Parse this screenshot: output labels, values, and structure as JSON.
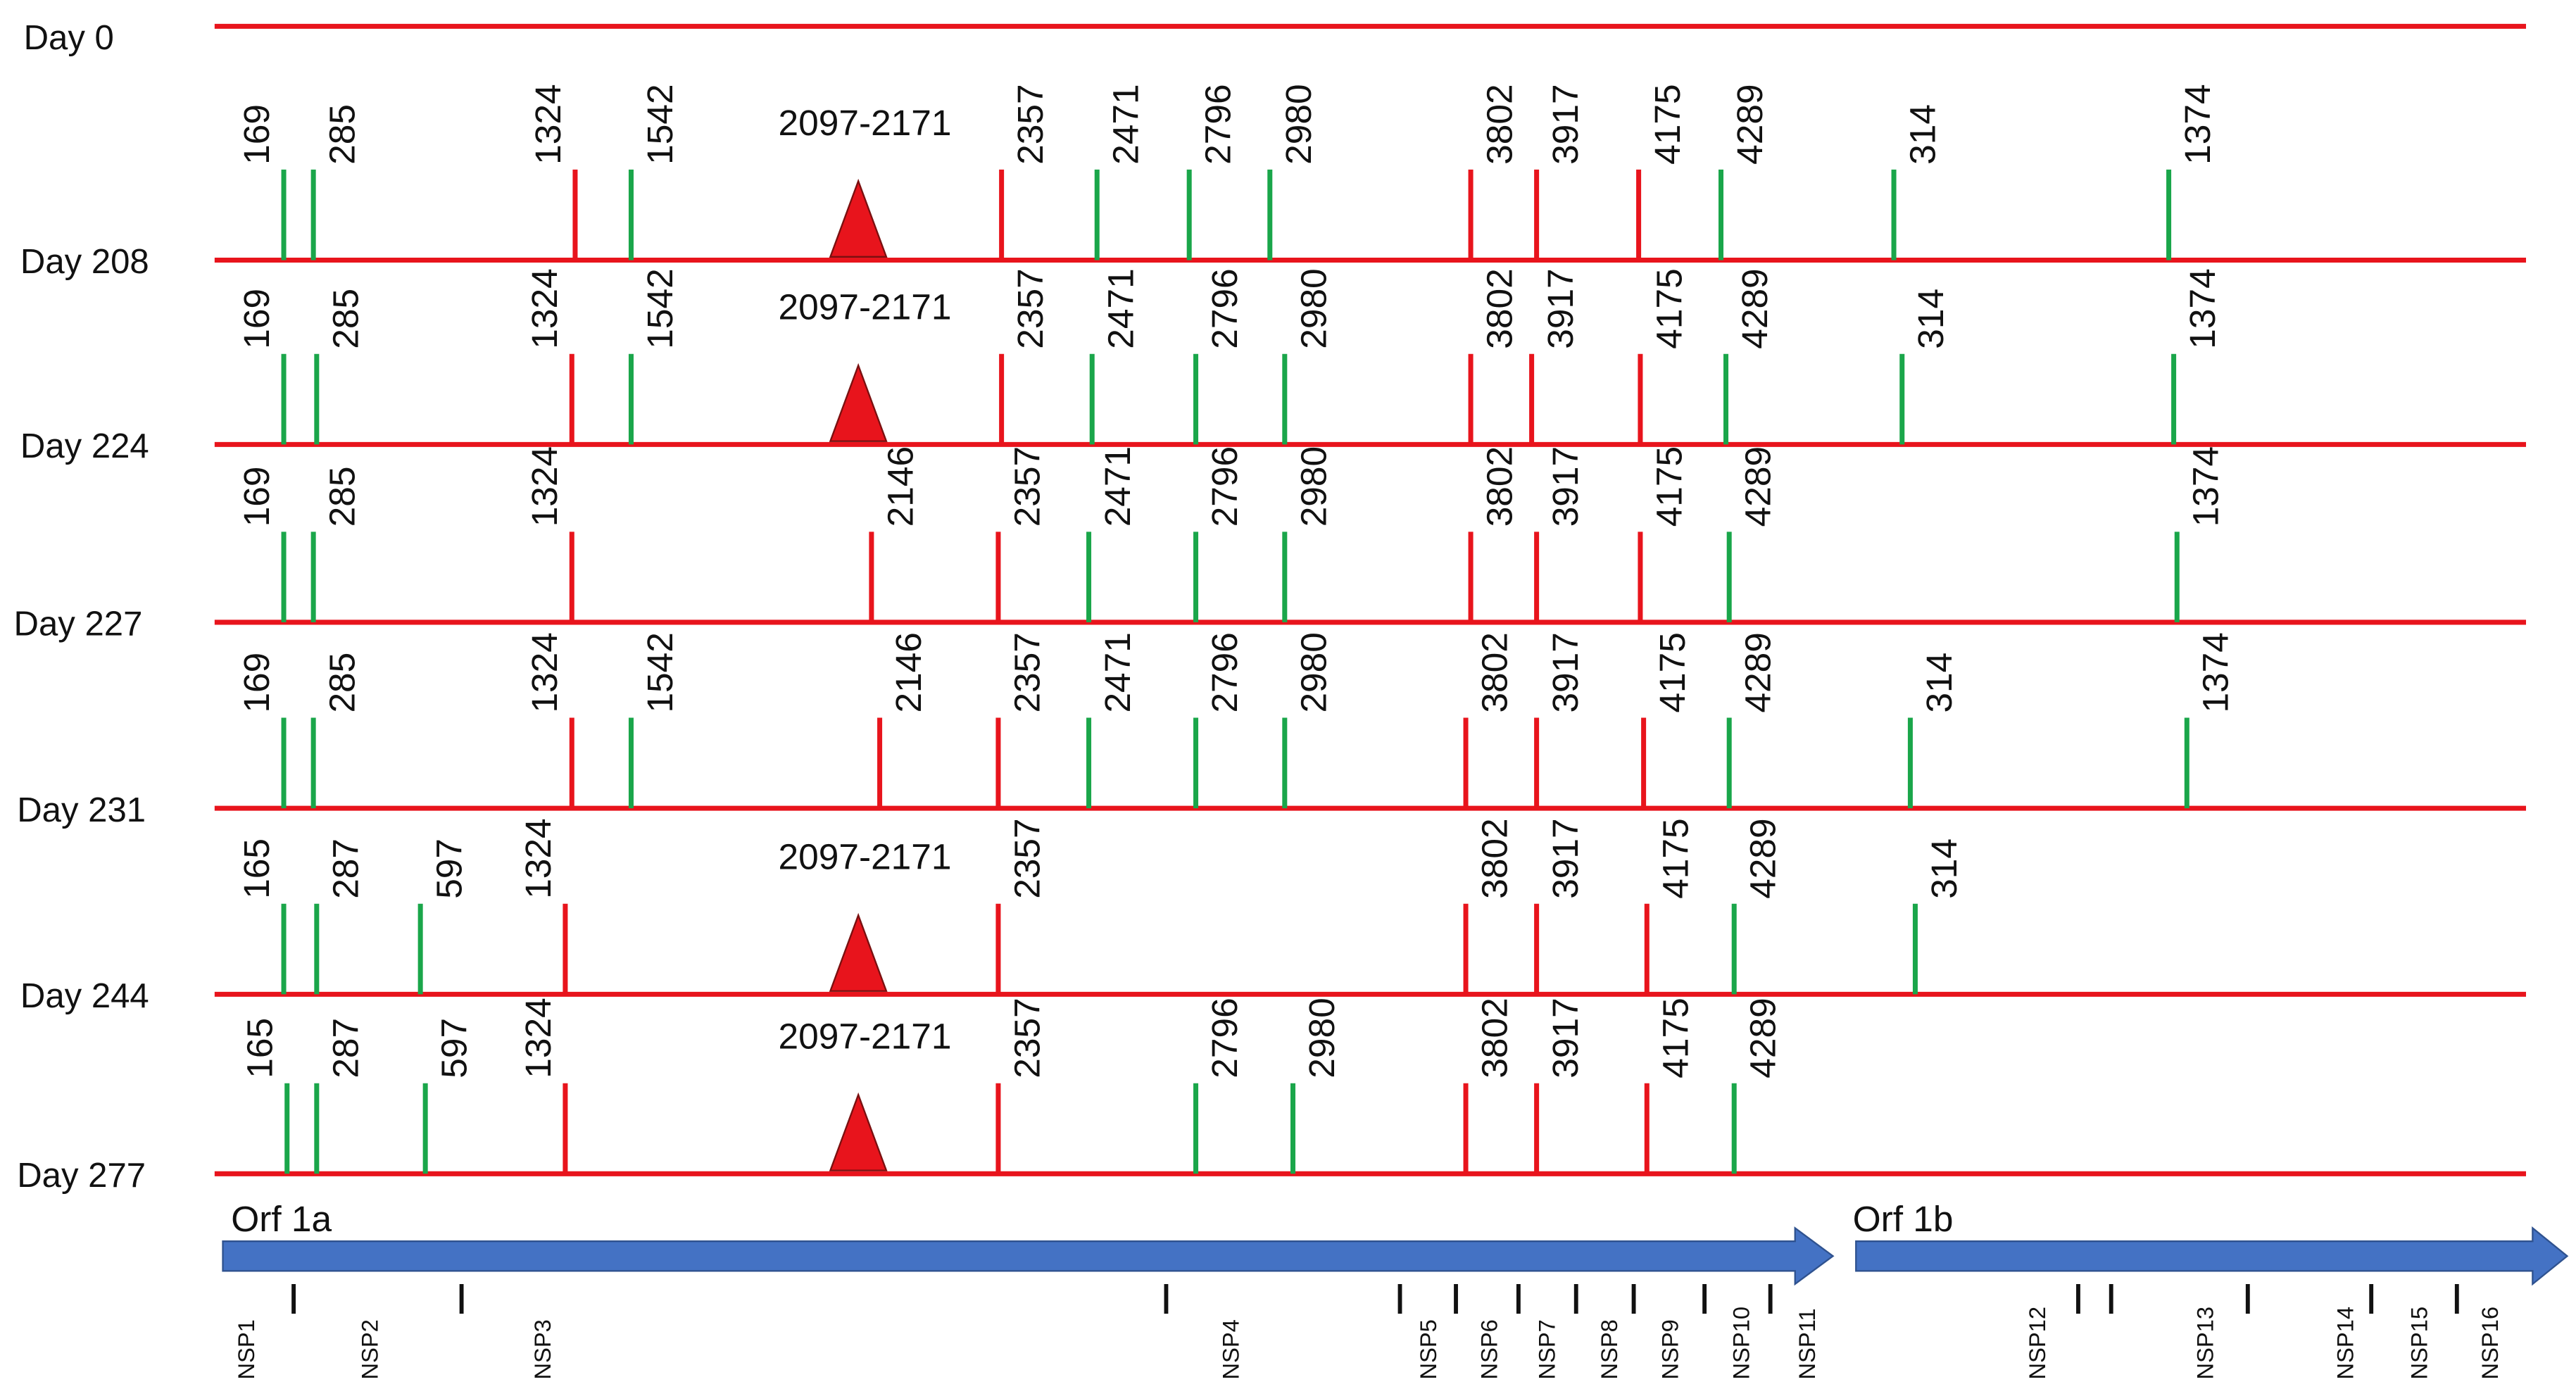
{
  "rows": [
    {
      "label": "Day 0",
      "mutations": []
    },
    {
      "label": "Day 208",
      "mutations": [
        {
          "label": "169",
          "color": "#1aa64a"
        },
        {
          "label": "285",
          "color": "#1aa64a"
        },
        {
          "label": "1324",
          "color": "#e8141c"
        },
        {
          "label": "1542",
          "color": "#1aa64a"
        },
        {
          "label": "2097-2171",
          "color": "#e8141c",
          "shape": "triangle"
        },
        {
          "label": "2357",
          "color": "#e8141c"
        },
        {
          "label": "2471",
          "color": "#1aa64a"
        },
        {
          "label": "2796",
          "color": "#1aa64a"
        },
        {
          "label": "2980",
          "color": "#1aa64a"
        },
        {
          "label": "3802",
          "color": "#e8141c"
        },
        {
          "label": "3917",
          "color": "#e8141c"
        },
        {
          "label": "4175",
          "color": "#e8141c"
        },
        {
          "label": "4289",
          "color": "#1aa64a"
        },
        {
          "label": "314",
          "color": "#1aa64a"
        },
        {
          "label": "1374",
          "color": "#1aa64a"
        }
      ]
    },
    {
      "label": "Day 224",
      "mutations": [
        {
          "label": "169",
          "color": "#1aa64a"
        },
        {
          "label": "285",
          "color": "#1aa64a"
        },
        {
          "label": "1324",
          "color": "#e8141c"
        },
        {
          "label": "1542",
          "color": "#1aa64a"
        },
        {
          "label": "2097-2171",
          "color": "#e8141c",
          "shape": "triangle"
        },
        {
          "label": "2357",
          "color": "#e8141c"
        },
        {
          "label": "2471",
          "color": "#1aa64a"
        },
        {
          "label": "2796",
          "color": "#1aa64a"
        },
        {
          "label": "2980",
          "color": "#1aa64a"
        },
        {
          "label": "3802",
          "color": "#e8141c"
        },
        {
          "label": "3917",
          "color": "#e8141c"
        },
        {
          "label": "4175",
          "color": "#e8141c"
        },
        {
          "label": "4289",
          "color": "#1aa64a"
        },
        {
          "label": "314",
          "color": "#1aa64a"
        },
        {
          "label": "1374",
          "color": "#1aa64a"
        }
      ]
    },
    {
      "label": "Day 227",
      "mutations": [
        {
          "label": "169",
          "color": "#1aa64a"
        },
        {
          "label": "285",
          "color": "#1aa64a"
        },
        {
          "label": "1324",
          "color": "#e8141c"
        },
        {
          "label": "2146",
          "color": "#e8141c"
        },
        {
          "label": "2357",
          "color": "#e8141c"
        },
        {
          "label": "2471",
          "color": "#1aa64a"
        },
        {
          "label": "2796",
          "color": "#1aa64a"
        },
        {
          "label": "2980",
          "color": "#1aa64a"
        },
        {
          "label": "3802",
          "color": "#e8141c"
        },
        {
          "label": "3917",
          "color": "#e8141c"
        },
        {
          "label": "4175",
          "color": "#e8141c"
        },
        {
          "label": "4289",
          "color": "#1aa64a"
        },
        {
          "label": "1374",
          "color": "#1aa64a"
        }
      ]
    },
    {
      "label": "Day 231",
      "mutations": [
        {
          "label": "169",
          "color": "#1aa64a"
        },
        {
          "label": "285",
          "color": "#1aa64a"
        },
        {
          "label": "1324",
          "color": "#e8141c"
        },
        {
          "label": "1542",
          "color": "#1aa64a"
        },
        {
          "label": "2146",
          "color": "#e8141c"
        },
        {
          "label": "2357",
          "color": "#e8141c"
        },
        {
          "label": "2471",
          "color": "#1aa64a"
        },
        {
          "label": "2796",
          "color": "#1aa64a"
        },
        {
          "label": "2980",
          "color": "#1aa64a"
        },
        {
          "label": "3802",
          "color": "#e8141c"
        },
        {
          "label": "3917",
          "color": "#e8141c"
        },
        {
          "label": "4175",
          "color": "#e8141c"
        },
        {
          "label": "4289",
          "color": "#1aa64a"
        },
        {
          "label": "314",
          "color": "#1aa64a"
        },
        {
          "label": "1374",
          "color": "#1aa64a"
        }
      ]
    },
    {
      "label": "Day 244",
      "mutations": [
        {
          "label": "165",
          "color": "#1aa64a"
        },
        {
          "label": "287",
          "color": "#1aa64a"
        },
        {
          "label": "597",
          "color": "#1aa64a"
        },
        {
          "label": "1324",
          "color": "#e8141c"
        },
        {
          "label": "2097-2171",
          "color": "#e8141c",
          "shape": "triangle"
        },
        {
          "label": "2357",
          "color": "#e8141c"
        },
        {
          "label": "3802",
          "color": "#e8141c"
        },
        {
          "label": "3917",
          "color": "#e8141c"
        },
        {
          "label": "4175",
          "color": "#e8141c"
        },
        {
          "label": "4289",
          "color": "#1aa64a"
        },
        {
          "label": "314",
          "color": "#1aa64a"
        }
      ]
    },
    {
      "label": "Day 277",
      "mutations": [
        {
          "label": "165",
          "color": "#1aa64a"
        },
        {
          "label": "287",
          "color": "#1aa64a"
        },
        {
          "label": "597",
          "color": "#1aa64a"
        },
        {
          "label": "1324",
          "color": "#e8141c"
        },
        {
          "label": "2097-2171",
          "color": "#e8141c",
          "shape": "triangle"
        },
        {
          "label": "2357",
          "color": "#e8141c"
        },
        {
          "label": "2796",
          "color": "#1aa64a"
        },
        {
          "label": "2980",
          "color": "#1aa64a"
        },
        {
          "label": "3802",
          "color": "#e8141c"
        },
        {
          "label": "3917",
          "color": "#e8141c"
        },
        {
          "label": "4175",
          "color": "#e8141c"
        },
        {
          "label": "4289",
          "color": "#1aa64a"
        }
      ]
    }
  ],
  "orfs": [
    {
      "label": "Orf 1a"
    },
    {
      "label": "Orf 1b"
    }
  ],
  "nsps": [
    "NSP1",
    "NSP2",
    "NSP3",
    "NSP4",
    "NSP5",
    "NSP6",
    "NSP7",
    "NSP8",
    "NSP9",
    "NSP10",
    "NSP11",
    "NSP12",
    "NSP13",
    "NSP14",
    "NSP15",
    "NSP16"
  ]
}
